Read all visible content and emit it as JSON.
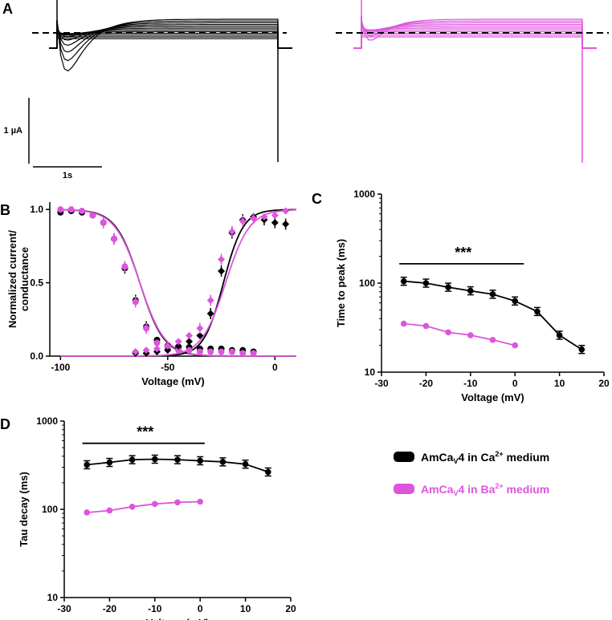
{
  "colors": {
    "ca": "#000000",
    "ba": "#dd55dd"
  },
  "panels": {
    "A": {
      "letter": "A",
      "scale_current": "1 µA",
      "scale_time": "1s"
    },
    "B": {
      "letter": "B"
    },
    "C": {
      "letter": "C"
    },
    "D": {
      "letter": "D"
    }
  },
  "legend": {
    "ca_prefix": "AmCa",
    "ca_sub": "V",
    "ca_mid": "4 in Ca",
    "ca_sup": "2+",
    "ca_suffix": " medium",
    "ba_prefix": "AmCa",
    "ba_sub": "V",
    "ba_mid": "4 in Ba",
    "ba_sup": "2+",
    "ba_suffix": " medium"
  },
  "chart_data": [
    {
      "id": "B",
      "type": "scatter",
      "ylabel_line1": "Normalized current/",
      "ylabel_line2": "conductance",
      "xlabel": "Voltage (mV)",
      "xlim": [
        -105,
        10
      ],
      "ylim": [
        0,
        1.05
      ],
      "xticks": [
        -100,
        -50,
        0
      ],
      "yticks": [
        0.0,
        0.5,
        1.0
      ],
      "ytick_labels": [
        "0.0",
        "0.5",
        "1.0"
      ],
      "series": [
        {
          "color_key": "ca",
          "marker": "circle",
          "x": [
            -100,
            -95,
            -90,
            -85,
            -80,
            -75,
            -70,
            -65,
            -60,
            -55,
            -50,
            -45,
            -40,
            -35,
            -30,
            -25,
            -20,
            -15,
            -10
          ],
          "y": [
            0.98,
            0.99,
            0.98,
            0.96,
            0.91,
            0.8,
            0.6,
            0.38,
            0.2,
            0.11,
            0.07,
            0.06,
            0.06,
            0.05,
            0.05,
            0.05,
            0.04,
            0.04,
            0.03
          ]
        },
        {
          "color_key": "ba",
          "marker": "circle",
          "x": [
            -100,
            -95,
            -90,
            -85,
            -80,
            -75,
            -70,
            -65,
            -60,
            -55,
            -50,
            -45,
            -40,
            -35,
            -30,
            -25,
            -20,
            -15,
            -10
          ],
          "y": [
            1.0,
            1.0,
            0.99,
            0.96,
            0.91,
            0.8,
            0.61,
            0.37,
            0.19,
            0.09,
            0.05,
            0.04,
            0.04,
            0.03,
            0.03,
            0.03,
            0.03,
            0.02,
            0.02
          ]
        },
        {
          "color_key": "ca",
          "marker": "diamond",
          "x": [
            -65,
            -60,
            -55,
            -50,
            -45,
            -40,
            -35,
            -30,
            -25,
            -20,
            -15,
            -10,
            -5,
            0,
            5
          ],
          "y": [
            0.02,
            0.02,
            0.03,
            0.04,
            0.07,
            0.1,
            0.14,
            0.29,
            0.58,
            0.84,
            0.93,
            0.95,
            0.93,
            0.91,
            0.9
          ]
        },
        {
          "color_key": "ba",
          "marker": "diamond",
          "x": [
            -65,
            -60,
            -55,
            -50,
            -45,
            -40,
            -35,
            -30,
            -25,
            -20,
            -15,
            -10,
            -5,
            0,
            5
          ],
          "y": [
            0.03,
            0.04,
            0.05,
            0.07,
            0.1,
            0.14,
            0.19,
            0.38,
            0.66,
            0.85,
            0.92,
            0.94,
            0.95,
            0.96,
            0.99
          ]
        }
      ]
    },
    {
      "id": "C",
      "type": "line",
      "ylabel": "Time to peak (ms)",
      "xlabel": "Voltage (mV)",
      "yscale": "log",
      "xlim": [
        -30,
        20
      ],
      "ylim": [
        10,
        1000
      ],
      "xticks": [
        -30,
        -20,
        -10,
        0,
        10,
        20
      ],
      "yticks": [
        10,
        100,
        1000
      ],
      "significance": "***",
      "sig_range": [
        -26,
        2
      ],
      "sig_level": 165,
      "series": [
        {
          "color_key": "ca",
          "x": [
            -25,
            -20,
            -15,
            -10,
            -5,
            0,
            5,
            10,
            15
          ],
          "y": [
            105,
            100,
            90,
            82,
            75,
            63,
            48,
            26,
            18
          ]
        },
        {
          "color_key": "ba",
          "x": [
            -25,
            -20,
            -15,
            -10,
            -5,
            0
          ],
          "y": [
            35,
            33,
            28,
            26,
            23,
            20
          ]
        }
      ]
    },
    {
      "id": "D",
      "type": "line",
      "ylabel": "Tau decay (ms)",
      "xlabel": "Voltage (mV)",
      "yscale": "log",
      "xlim": [
        -30,
        20
      ],
      "ylim": [
        10,
        1000
      ],
      "xticks": [
        -30,
        -20,
        -10,
        0,
        10,
        20
      ],
      "yticks": [
        10,
        100,
        1000
      ],
      "significance": "***",
      "sig_range": [
        -26,
        1
      ],
      "sig_level": 560,
      "series": [
        {
          "color_key": "ca",
          "x": [
            -25,
            -20,
            -15,
            -10,
            -5,
            0,
            5,
            10,
            15
          ],
          "y": [
            320,
            340,
            365,
            370,
            365,
            355,
            345,
            325,
            265
          ]
        },
        {
          "color_key": "ba",
          "x": [
            -25,
            -20,
            -15,
            -10,
            -5,
            0
          ],
          "y": [
            92,
            97,
            107,
            115,
            120,
            122
          ]
        }
      ]
    }
  ]
}
